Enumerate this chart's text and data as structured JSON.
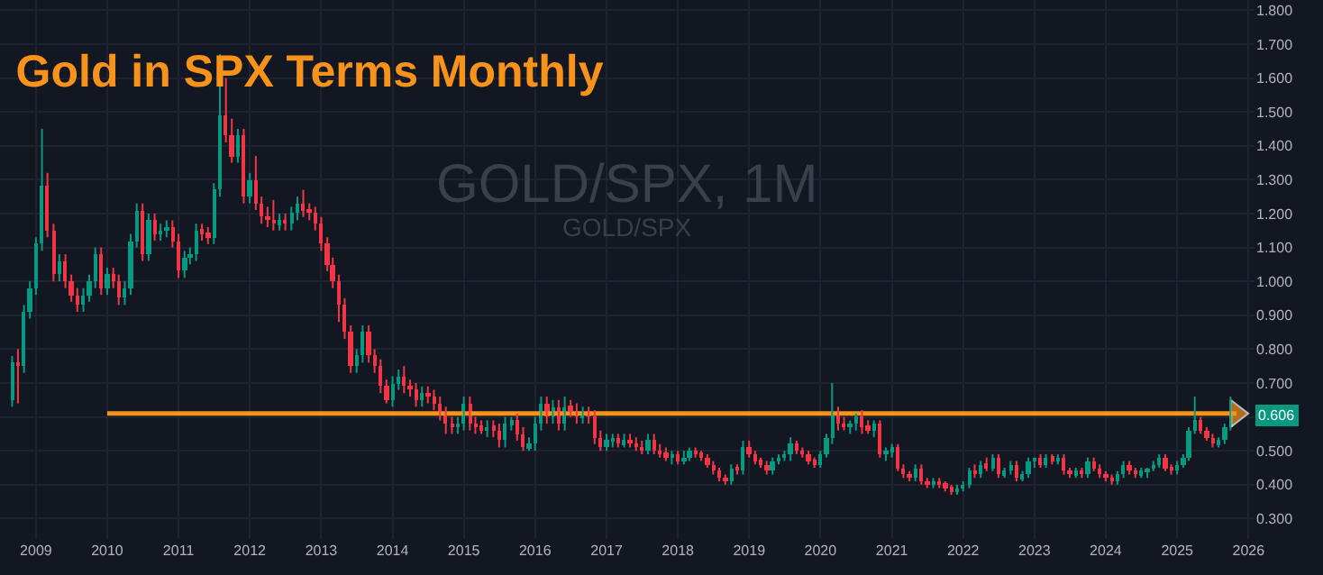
{
  "chart_data": {
    "type": "candlestick",
    "title": "Gold in SPX Terms Monthly",
    "annotations": [
      "GOLD/SPX, 1M",
      "GOLD/SPX",
      "0.606"
    ],
    "xlim": [
      "2008-07",
      "2026-02"
    ],
    "xticks": [
      {
        "value": "2009-01",
        "label": "2009"
      },
      {
        "value": "2010-01",
        "label": "2010"
      },
      {
        "value": "2011-01",
        "label": "2011"
      },
      {
        "value": "2012-01",
        "label": "2012"
      },
      {
        "value": "2013-01",
        "label": "2013"
      },
      {
        "value": "2014-01",
        "label": "2014"
      },
      {
        "value": "2015-01",
        "label": "2015"
      },
      {
        "value": "2016-01",
        "label": "2016"
      },
      {
        "value": "2017-01",
        "label": "2017"
      },
      {
        "value": "2018-01",
        "label": "2018"
      },
      {
        "value": "2019-01",
        "label": "2019"
      },
      {
        "value": "2020-01",
        "label": "2020"
      },
      {
        "value": "2021-01",
        "label": "2021"
      },
      {
        "value": "2022-01",
        "label": "2022"
      },
      {
        "value": "2023-01",
        "label": "2023"
      },
      {
        "value": "2024-01",
        "label": "2024"
      },
      {
        "value": "2025-01",
        "label": "2025"
      },
      {
        "value": "2026-01",
        "label": "2026"
      }
    ],
    "ylim": [
      0.24,
      1.83
    ],
    "yticks": [
      {
        "value": 0.3,
        "label": "0.300"
      },
      {
        "value": 0.4,
        "label": "0.400"
      },
      {
        "value": 0.5,
        "label": "0.500"
      },
      {
        "value": 0.6,
        "label": null
      },
      {
        "value": 0.7,
        "label": "0.700"
      },
      {
        "value": 0.8,
        "label": "0.800"
      },
      {
        "value": 0.9,
        "label": "0.900"
      },
      {
        "value": 1.0,
        "label": "1.000"
      },
      {
        "value": 1.1,
        "label": "1.100"
      },
      {
        "value": 1.2,
        "label": "1.200"
      },
      {
        "value": 1.3,
        "label": "1.300"
      },
      {
        "value": 1.4,
        "label": "1.400"
      },
      {
        "value": 1.5,
        "label": "1.500"
      },
      {
        "value": 1.6,
        "label": "1.600"
      },
      {
        "value": 1.7,
        "label": "1.700"
      },
      {
        "value": 1.8,
        "label": "1.800"
      }
    ],
    "grid": true,
    "series": [
      {
        "colors": [
          "#089981",
          "#f23645",
          "#089981",
          "#089981",
          "#089981",
          "#089981",
          "#f23645",
          "#f23645",
          "#089981",
          "#f23645",
          "#f23645",
          "#f23645",
          "#089981",
          "#089981",
          "#089981",
          "#f23645",
          "#089981",
          "#f23645",
          "#f23645",
          "#089981",
          "#089981",
          "#089981",
          "#f23645",
          "#089981",
          "#f23645",
          "#089981",
          "#089981",
          "#f23645",
          "#f23645",
          "#089981",
          "#089981",
          "#089981",
          "#f23645",
          "#f23645",
          "#089981",
          "#089981",
          "#f23645",
          "#f23645",
          "#089981",
          "#f23645",
          "#089981",
          "#f23645",
          "#f23645",
          "#f23645",
          "#f23645",
          "#089981",
          "#f23645",
          "#089981",
          "#089981",
          "#f23645",
          "#f23645",
          "#f23645",
          "#f23645",
          "#f23645",
          "#f23645",
          "#f23645",
          "#f23645",
          "#f23645",
          "#089981",
          "#089981",
          "#f23645",
          "#f23645",
          "#f23645",
          "#f23645",
          "#089981",
          "#089981",
          "#f23645",
          "#f23645",
          "#f23645",
          "#089981",
          "#f23645",
          "#f23645",
          "#f23645",
          "#f23645",
          "#f23645",
          "#089981",
          "#089981",
          "#f23645",
          "#f23645",
          "#f23645",
          "#089981",
          "#f23645",
          "#f23645",
          "#089981",
          "#089981",
          "#f23645",
          "#f23645",
          "#089981",
          "#089981",
          "#089981",
          "#f23645",
          "#089981",
          "#f23645",
          "#089981",
          "#f23645",
          "#f23645",
          "#089981",
          "#f23645",
          "#f23645",
          "#f23645",
          "#089981",
          "#089981",
          "#f23645",
          "#089981",
          "#f23645",
          "#f23645",
          "#f23645",
          "#089981",
          "#f23645",
          "#f23645",
          "#f23645",
          "#089981",
          "#f23645",
          "#089981",
          "#089981",
          "#f23645",
          "#f23645",
          "#f23645",
          "#f23645",
          "#f23645",
          "#f23645",
          "#089981",
          "#f23645",
          "#089981",
          "#f23645",
          "#f23645",
          "#f23645",
          "#f23645",
          "#089981",
          "#089981",
          "#089981",
          "#089981",
          "#f23645",
          "#f23645",
          "#f23645",
          "#f23645",
          "#089981",
          "#089981",
          "#089981",
          "#f23645",
          "#f23645",
          "#089981",
          "#089981",
          "#f23645",
          "#f23645",
          "#089981",
          "#f23645",
          "#089981",
          "#089981",
          "#f23645",
          "#f23645",
          "#f23645",
          "#089981",
          "#f23645",
          "#f23645",
          "#089981",
          "#f23645",
          "#f23645",
          "#f23645",
          "#089981",
          "#089981",
          "#089981",
          "#f23645",
          "#089981",
          "#f23645",
          "#089981",
          "#f23645",
          "#089981",
          "#089981",
          "#f23645",
          "#089981",
          "#089981",
          "#089981",
          "#f23645",
          "#089981",
          "#f23645",
          "#089981",
          "#f23645",
          "#f23645",
          "#089981",
          "#f23645",
          "#089981",
          "#f23645",
          "#f23645",
          "#f23645",
          "#f23645",
          "#089981",
          "#089981",
          "#f23645",
          "#f23645",
          "#089981",
          "#089981",
          "#089981",
          "#089981",
          "#f23645",
          "#f23645",
          "#089981",
          "#089981",
          "#089981",
          "#089981",
          "#f23645",
          "#f23645",
          "#f23645",
          "#089981",
          "#089981",
          "#089981"
        ],
        "x": [
          "2008-09",
          "2008-10",
          "2008-11",
          "2008-12",
          "2009-01",
          "2009-02",
          "2009-03",
          "2009-04",
          "2009-05",
          "2009-06",
          "2009-07",
          "2009-08",
          "2009-09",
          "2009-10",
          "2009-11",
          "2009-12",
          "2010-01",
          "2010-02",
          "2010-03",
          "2010-04",
          "2010-05",
          "2010-06",
          "2010-07",
          "2010-08",
          "2010-09",
          "2010-10",
          "2010-11",
          "2010-12",
          "2011-01",
          "2011-02",
          "2011-03",
          "2011-04",
          "2011-05",
          "2011-06",
          "2011-07",
          "2011-08",
          "2011-09",
          "2011-10",
          "2011-11",
          "2011-12",
          "2012-01",
          "2012-02",
          "2012-03",
          "2012-04",
          "2012-05",
          "2012-06",
          "2012-07",
          "2012-08",
          "2012-09",
          "2012-10",
          "2012-11",
          "2012-12",
          "2013-01",
          "2013-02",
          "2013-03",
          "2013-04",
          "2013-05",
          "2013-06",
          "2013-07",
          "2013-08",
          "2013-09",
          "2013-10",
          "2013-11",
          "2013-12",
          "2014-01",
          "2014-02",
          "2014-03",
          "2014-04",
          "2014-05",
          "2014-06",
          "2014-07",
          "2014-08",
          "2014-09",
          "2014-10",
          "2014-11",
          "2014-12",
          "2015-01",
          "2015-02",
          "2015-03",
          "2015-04",
          "2015-05",
          "2015-06",
          "2015-07",
          "2015-08",
          "2015-09",
          "2015-10",
          "2015-11",
          "2015-12",
          "2016-01",
          "2016-02",
          "2016-03",
          "2016-04",
          "2016-05",
          "2016-06",
          "2016-07",
          "2016-08",
          "2016-09",
          "2016-10",
          "2016-11",
          "2016-12",
          "2017-01",
          "2017-02",
          "2017-03",
          "2017-04",
          "2017-05",
          "2017-06",
          "2017-07",
          "2017-08",
          "2017-09",
          "2017-10",
          "2017-11",
          "2017-12",
          "2018-01",
          "2018-02",
          "2018-03",
          "2018-04",
          "2018-05",
          "2018-06",
          "2018-07",
          "2018-08",
          "2018-09",
          "2018-10",
          "2018-11",
          "2018-12",
          "2019-01",
          "2019-02",
          "2019-03",
          "2019-04",
          "2019-05",
          "2019-06",
          "2019-07",
          "2019-08",
          "2019-09",
          "2019-10",
          "2019-11",
          "2019-12",
          "2020-01",
          "2020-02",
          "2020-03",
          "2020-04",
          "2020-05",
          "2020-06",
          "2020-07",
          "2020-08",
          "2020-09",
          "2020-10",
          "2020-11",
          "2020-12",
          "2021-01",
          "2021-02",
          "2021-03",
          "2021-04",
          "2021-05",
          "2021-06",
          "2021-07",
          "2021-08",
          "2021-09",
          "2021-10",
          "2021-11",
          "2021-12",
          "2022-01",
          "2022-02",
          "2022-03",
          "2022-04",
          "2022-05",
          "2022-06",
          "2022-07",
          "2022-08",
          "2022-09",
          "2022-10",
          "2022-11",
          "2022-12",
          "2023-01",
          "2023-02",
          "2023-03",
          "2023-04",
          "2023-05",
          "2023-06",
          "2023-07",
          "2023-08",
          "2023-09",
          "2023-10",
          "2023-11",
          "2023-12",
          "2024-01",
          "2024-02",
          "2024-03",
          "2024-04",
          "2024-05",
          "2024-06",
          "2024-07",
          "2024-08",
          "2024-09",
          "2024-10",
          "2024-11",
          "2024-12",
          "2025-01",
          "2025-02",
          "2025-03",
          "2025-04",
          "2025-05",
          "2025-06",
          "2025-07",
          "2025-08",
          "2025-09",
          "2025-10"
        ],
        "ohlc": [
          [
            0.65,
            0.78,
            0.63,
            0.76
          ],
          [
            0.76,
            0.8,
            0.64,
            0.75
          ],
          [
            0.75,
            0.93,
            0.73,
            0.91
          ],
          [
            0.91,
            1.0,
            0.89,
            0.98
          ],
          [
            0.98,
            1.13,
            0.96,
            1.11
          ],
          [
            1.11,
            1.45,
            1.09,
            1.28
          ],
          [
            1.28,
            1.32,
            1.13,
            1.15
          ],
          [
            1.15,
            1.17,
            1.0,
            1.02
          ],
          [
            1.02,
            1.08,
            1.0,
            1.06
          ],
          [
            1.06,
            1.08,
            0.98,
            1.0
          ],
          [
            1.0,
            1.02,
            0.94,
            0.96
          ],
          [
            0.96,
            0.98,
            0.91,
            0.93
          ],
          [
            0.93,
            0.98,
            0.91,
            0.96
          ],
          [
            0.96,
            1.02,
            0.94,
            1.0
          ],
          [
            1.0,
            1.1,
            0.98,
            1.08
          ],
          [
            1.08,
            1.1,
            0.96,
            0.98
          ],
          [
            0.98,
            1.04,
            0.96,
            1.02
          ],
          [
            1.02,
            1.04,
            0.98,
            1.0
          ],
          [
            1.0,
            1.02,
            0.93,
            0.95
          ],
          [
            0.95,
            1.0,
            0.93,
            0.98
          ],
          [
            0.98,
            1.14,
            0.96,
            1.12
          ],
          [
            1.12,
            1.23,
            1.1,
            1.21
          ],
          [
            1.21,
            1.23,
            1.06,
            1.08
          ],
          [
            1.08,
            1.2,
            1.06,
            1.18
          ],
          [
            1.18,
            1.2,
            1.12,
            1.14
          ],
          [
            1.14,
            1.17,
            1.12,
            1.15
          ],
          [
            1.15,
            1.18,
            1.13,
            1.16
          ],
          [
            1.16,
            1.18,
            1.1,
            1.12
          ],
          [
            1.12,
            1.14,
            1.01,
            1.03
          ],
          [
            1.03,
            1.09,
            1.01,
            1.07
          ],
          [
            1.07,
            1.1,
            1.05,
            1.08
          ],
          [
            1.08,
            1.17,
            1.06,
            1.15
          ],
          [
            1.15,
            1.17,
            1.12,
            1.14
          ],
          [
            1.14,
            1.16,
            1.11,
            1.13
          ],
          [
            1.13,
            1.29,
            1.11,
            1.27
          ],
          [
            1.27,
            1.67,
            1.25,
            1.49
          ],
          [
            1.49,
            1.6,
            1.41,
            1.43
          ],
          [
            1.43,
            1.48,
            1.35,
            1.37
          ],
          [
            1.37,
            1.45,
            1.35,
            1.43
          ],
          [
            1.43,
            1.45,
            1.23,
            1.25
          ],
          [
            1.25,
            1.32,
            1.23,
            1.3
          ],
          [
            1.3,
            1.37,
            1.21,
            1.23
          ],
          [
            1.23,
            1.25,
            1.17,
            1.19
          ],
          [
            1.19,
            1.22,
            1.16,
            1.18
          ],
          [
            1.18,
            1.24,
            1.15,
            1.17
          ],
          [
            1.17,
            1.2,
            1.15,
            1.18
          ],
          [
            1.18,
            1.2,
            1.15,
            1.17
          ],
          [
            1.17,
            1.22,
            1.15,
            1.2
          ],
          [
            1.2,
            1.25,
            1.18,
            1.23
          ],
          [
            1.23,
            1.27,
            1.19,
            1.21
          ],
          [
            1.21,
            1.23,
            1.18,
            1.2
          ],
          [
            1.2,
            1.22,
            1.15,
            1.17
          ],
          [
            1.17,
            1.19,
            1.09,
            1.11
          ],
          [
            1.11,
            1.13,
            1.03,
            1.05
          ],
          [
            1.05,
            1.07,
            0.98,
            1.0
          ],
          [
            1.0,
            1.02,
            0.88,
            0.93
          ],
          [
            0.93,
            0.95,
            0.83,
            0.85
          ],
          [
            0.85,
            0.87,
            0.73,
            0.75
          ],
          [
            0.75,
            0.8,
            0.73,
            0.78
          ],
          [
            0.78,
            0.87,
            0.76,
            0.85
          ],
          [
            0.85,
            0.87,
            0.76,
            0.78
          ],
          [
            0.78,
            0.8,
            0.73,
            0.75
          ],
          [
            0.75,
            0.77,
            0.67,
            0.69
          ],
          [
            0.69,
            0.71,
            0.64,
            0.65
          ],
          [
            0.65,
            0.72,
            0.63,
            0.7
          ],
          [
            0.7,
            0.74,
            0.68,
            0.72
          ],
          [
            0.72,
            0.75,
            0.67,
            0.69
          ],
          [
            0.69,
            0.71,
            0.66,
            0.68
          ],
          [
            0.68,
            0.7,
            0.63,
            0.65
          ],
          [
            0.65,
            0.69,
            0.63,
            0.67
          ],
          [
            0.67,
            0.69,
            0.64,
            0.66
          ],
          [
            0.66,
            0.68,
            0.62,
            0.64
          ],
          [
            0.64,
            0.66,
            0.59,
            0.61
          ],
          [
            0.61,
            0.63,
            0.55,
            0.58
          ],
          [
            0.58,
            0.6,
            0.55,
            0.57
          ],
          [
            0.57,
            0.6,
            0.55,
            0.58
          ],
          [
            0.58,
            0.66,
            0.56,
            0.64
          ],
          [
            0.64,
            0.66,
            0.56,
            0.58
          ],
          [
            0.58,
            0.6,
            0.55,
            0.57
          ],
          [
            0.57,
            0.59,
            0.55,
            0.56
          ],
          [
            0.56,
            0.59,
            0.54,
            0.57
          ],
          [
            0.57,
            0.59,
            0.54,
            0.56
          ],
          [
            0.56,
            0.58,
            0.51,
            0.53
          ],
          [
            0.53,
            0.6,
            0.51,
            0.58
          ],
          [
            0.58,
            0.6,
            0.56,
            0.59
          ],
          [
            0.59,
            0.61,
            0.53,
            0.55
          ],
          [
            0.55,
            0.57,
            0.5,
            0.51
          ],
          [
            0.51,
            0.54,
            0.5,
            0.52
          ],
          [
            0.52,
            0.6,
            0.5,
            0.58
          ],
          [
            0.58,
            0.66,
            0.56,
            0.64
          ],
          [
            0.64,
            0.66,
            0.58,
            0.6
          ],
          [
            0.6,
            0.65,
            0.58,
            0.63
          ],
          [
            0.63,
            0.65,
            0.56,
            0.58
          ],
          [
            0.58,
            0.66,
            0.56,
            0.63
          ],
          [
            0.63,
            0.65,
            0.6,
            0.62
          ],
          [
            0.62,
            0.64,
            0.58,
            0.6
          ],
          [
            0.6,
            0.63,
            0.58,
            0.61
          ],
          [
            0.61,
            0.63,
            0.58,
            0.6
          ],
          [
            0.6,
            0.62,
            0.52,
            0.54
          ],
          [
            0.54,
            0.56,
            0.5,
            0.51
          ],
          [
            0.51,
            0.55,
            0.5,
            0.53
          ],
          [
            0.53,
            0.55,
            0.51,
            0.54
          ],
          [
            0.54,
            0.55,
            0.51,
            0.52
          ],
          [
            0.52,
            0.55,
            0.51,
            0.53
          ],
          [
            0.53,
            0.55,
            0.51,
            0.52
          ],
          [
            0.52,
            0.54,
            0.5,
            0.51
          ],
          [
            0.51,
            0.53,
            0.49,
            0.5
          ],
          [
            0.5,
            0.55,
            0.49,
            0.53
          ],
          [
            0.53,
            0.55,
            0.49,
            0.5
          ],
          [
            0.5,
            0.52,
            0.48,
            0.49
          ],
          [
            0.49,
            0.51,
            0.47,
            0.48
          ],
          [
            0.48,
            0.5,
            0.46,
            0.49
          ],
          [
            0.49,
            0.5,
            0.46,
            0.47
          ],
          [
            0.47,
            0.5,
            0.46,
            0.48
          ],
          [
            0.48,
            0.51,
            0.47,
            0.5
          ],
          [
            0.5,
            0.51,
            0.48,
            0.49
          ],
          [
            0.49,
            0.5,
            0.47,
            0.48
          ],
          [
            0.48,
            0.49,
            0.45,
            0.46
          ],
          [
            0.46,
            0.47,
            0.43,
            0.44
          ],
          [
            0.44,
            0.45,
            0.41,
            0.42
          ],
          [
            0.42,
            0.43,
            0.4,
            0.41
          ],
          [
            0.41,
            0.46,
            0.4,
            0.45
          ],
          [
            0.45,
            0.46,
            0.43,
            0.44
          ],
          [
            0.44,
            0.53,
            0.43,
            0.51
          ],
          [
            0.51,
            0.53,
            0.48,
            0.49
          ],
          [
            0.49,
            0.5,
            0.46,
            0.47
          ],
          [
            0.47,
            0.48,
            0.45,
            0.46
          ],
          [
            0.46,
            0.47,
            0.43,
            0.44
          ],
          [
            0.44,
            0.48,
            0.43,
            0.47
          ],
          [
            0.47,
            0.49,
            0.46,
            0.48
          ],
          [
            0.48,
            0.5,
            0.47,
            0.49
          ],
          [
            0.49,
            0.54,
            0.47,
            0.52
          ],
          [
            0.52,
            0.53,
            0.49,
            0.5
          ],
          [
            0.5,
            0.51,
            0.48,
            0.49
          ],
          [
            0.49,
            0.5,
            0.46,
            0.47
          ],
          [
            0.47,
            0.48,
            0.45,
            0.46
          ],
          [
            0.46,
            0.5,
            0.45,
            0.49
          ],
          [
            0.49,
            0.55,
            0.48,
            0.54
          ],
          [
            0.54,
            0.7,
            0.52,
            0.61
          ],
          [
            0.61,
            0.63,
            0.56,
            0.58
          ],
          [
            0.58,
            0.6,
            0.56,
            0.57
          ],
          [
            0.57,
            0.59,
            0.55,
            0.58
          ],
          [
            0.58,
            0.61,
            0.56,
            0.6
          ],
          [
            0.6,
            0.62,
            0.55,
            0.57
          ],
          [
            0.57,
            0.59,
            0.55,
            0.56
          ],
          [
            0.56,
            0.59,
            0.54,
            0.58
          ],
          [
            0.58,
            0.59,
            0.48,
            0.49
          ],
          [
            0.49,
            0.51,
            0.47,
            0.5
          ],
          [
            0.5,
            0.52,
            0.48,
            0.51
          ],
          [
            0.51,
            0.52,
            0.44,
            0.45
          ],
          [
            0.45,
            0.46,
            0.42,
            0.43
          ],
          [
            0.43,
            0.44,
            0.41,
            0.42
          ],
          [
            0.42,
            0.46,
            0.41,
            0.45
          ],
          [
            0.45,
            0.46,
            0.4,
            0.41
          ],
          [
            0.41,
            0.42,
            0.39,
            0.4
          ],
          [
            0.4,
            0.42,
            0.39,
            0.41
          ],
          [
            0.41,
            0.42,
            0.39,
            0.4
          ],
          [
            0.4,
            0.41,
            0.38,
            0.39
          ],
          [
            0.39,
            0.4,
            0.37,
            0.38
          ],
          [
            0.38,
            0.4,
            0.37,
            0.39
          ],
          [
            0.39,
            0.41,
            0.38,
            0.4
          ],
          [
            0.4,
            0.45,
            0.39,
            0.44
          ],
          [
            0.44,
            0.46,
            0.42,
            0.43
          ],
          [
            0.43,
            0.47,
            0.42,
            0.46
          ],
          [
            0.46,
            0.48,
            0.44,
            0.45
          ],
          [
            0.45,
            0.49,
            0.44,
            0.48
          ],
          [
            0.48,
            0.49,
            0.42,
            0.43
          ],
          [
            0.43,
            0.45,
            0.42,
            0.44
          ],
          [
            0.44,
            0.47,
            0.43,
            0.46
          ],
          [
            0.46,
            0.47,
            0.41,
            0.42
          ],
          [
            0.42,
            0.44,
            0.41,
            0.43
          ],
          [
            0.43,
            0.48,
            0.42,
            0.47
          ],
          [
            0.47,
            0.48,
            0.45,
            0.48
          ],
          [
            0.48,
            0.49,
            0.45,
            0.46
          ],
          [
            0.46,
            0.49,
            0.45,
            0.48
          ],
          [
            0.48,
            0.49,
            0.46,
            0.47
          ],
          [
            0.47,
            0.49,
            0.46,
            0.48
          ],
          [
            0.48,
            0.49,
            0.43,
            0.44
          ],
          [
            0.44,
            0.45,
            0.42,
            0.43
          ],
          [
            0.43,
            0.45,
            0.42,
            0.44
          ],
          [
            0.44,
            0.45,
            0.42,
            0.43
          ],
          [
            0.43,
            0.48,
            0.42,
            0.47
          ],
          [
            0.47,
            0.48,
            0.44,
            0.45
          ],
          [
            0.45,
            0.46,
            0.42,
            0.43
          ],
          [
            0.43,
            0.44,
            0.41,
            0.42
          ],
          [
            0.42,
            0.43,
            0.4,
            0.41
          ],
          [
            0.41,
            0.44,
            0.4,
            0.43
          ],
          [
            0.43,
            0.47,
            0.42,
            0.46
          ],
          [
            0.46,
            0.47,
            0.43,
            0.44
          ],
          [
            0.44,
            0.45,
            0.42,
            0.43
          ],
          [
            0.43,
            0.45,
            0.42,
            0.44
          ],
          [
            0.44,
            0.45,
            0.42,
            0.45
          ],
          [
            0.45,
            0.47,
            0.44,
            0.46
          ],
          [
            0.46,
            0.49,
            0.45,
            0.48
          ],
          [
            0.48,
            0.49,
            0.44,
            0.45
          ],
          [
            0.45,
            0.46,
            0.43,
            0.44
          ],
          [
            0.44,
            0.47,
            0.43,
            0.46
          ],
          [
            0.46,
            0.49,
            0.45,
            0.48
          ],
          [
            0.48,
            0.57,
            0.47,
            0.56
          ],
          [
            0.56,
            0.66,
            0.55,
            0.59
          ],
          [
            0.59,
            0.6,
            0.55,
            0.56
          ],
          [
            0.56,
            0.57,
            0.53,
            0.54
          ],
          [
            0.54,
            0.55,
            0.51,
            0.52
          ],
          [
            0.52,
            0.54,
            0.51,
            0.53
          ],
          [
            0.53,
            0.58,
            0.52,
            0.57
          ],
          [
            0.57,
            0.66,
            0.56,
            0.606
          ]
        ]
      },
      {
        "type": "line",
        "color": "#f7931a",
        "x": [
          "2010-01",
          "2025-11"
        ],
        "values": [
          0.61,
          0.61
        ]
      }
    ]
  }
}
